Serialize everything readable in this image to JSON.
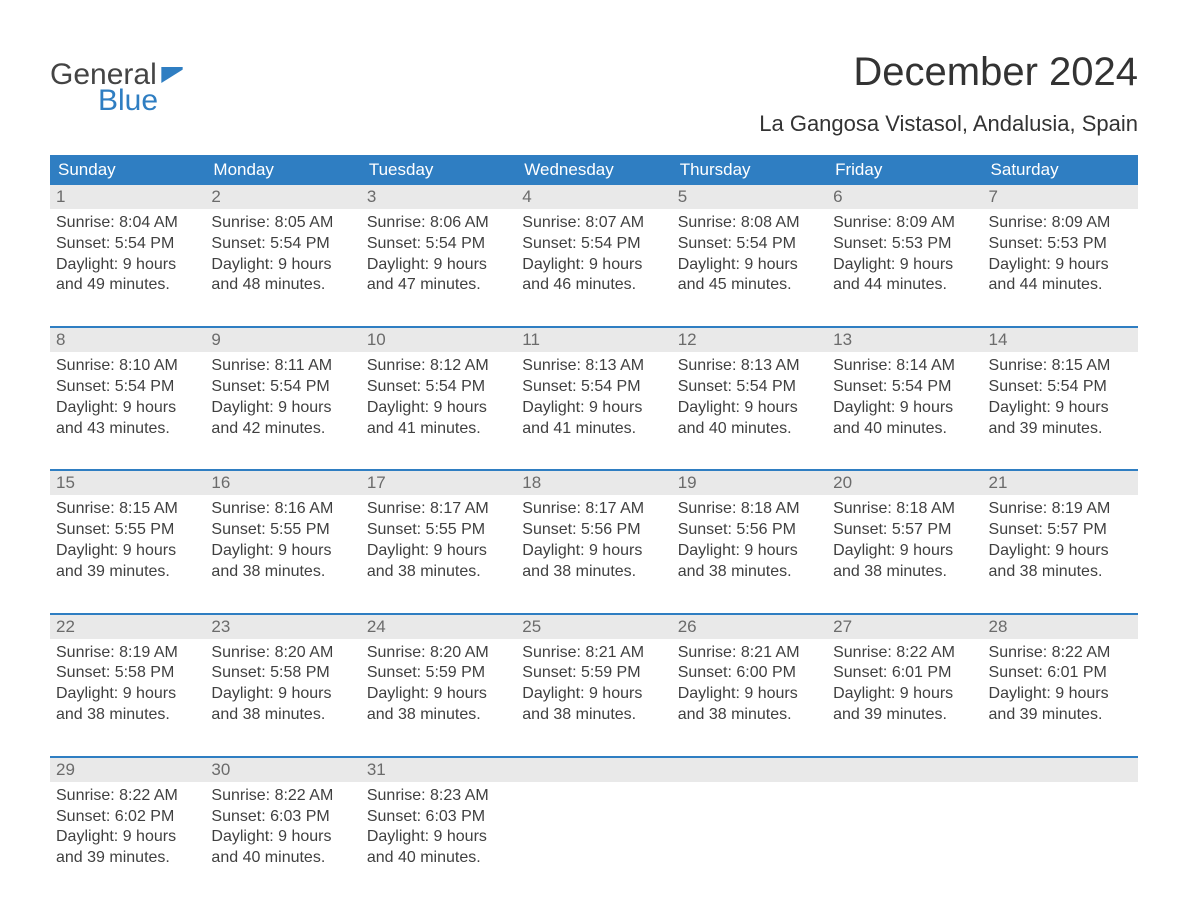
{
  "logo": {
    "text_top": "General",
    "text_bottom": "Blue",
    "flag_color": "#2f7ec2",
    "text_top_color": "#444444",
    "text_bottom_color": "#2f7ec2"
  },
  "title": "December 2024",
  "subtitle": "La Gangosa Vistasol, Andalusia, Spain",
  "colors": {
    "header_bg": "#2f7ec2",
    "header_text": "#ffffff",
    "week_border": "#2f7ec2",
    "daynum_bg": "#e9e9e9",
    "daynum_text": "#6b6b6b",
    "body_text": "#404040",
    "page_bg": "#ffffff"
  },
  "day_headers": [
    "Sunday",
    "Monday",
    "Tuesday",
    "Wednesday",
    "Thursday",
    "Friday",
    "Saturday"
  ],
  "weeks": [
    [
      {
        "n": "1",
        "sunrise": "8:04 AM",
        "sunset": "5:54 PM",
        "daylight": "9 hours and 49 minutes."
      },
      {
        "n": "2",
        "sunrise": "8:05 AM",
        "sunset": "5:54 PM",
        "daylight": "9 hours and 48 minutes."
      },
      {
        "n": "3",
        "sunrise": "8:06 AM",
        "sunset": "5:54 PM",
        "daylight": "9 hours and 47 minutes."
      },
      {
        "n": "4",
        "sunrise": "8:07 AM",
        "sunset": "5:54 PM",
        "daylight": "9 hours and 46 minutes."
      },
      {
        "n": "5",
        "sunrise": "8:08 AM",
        "sunset": "5:54 PM",
        "daylight": "9 hours and 45 minutes."
      },
      {
        "n": "6",
        "sunrise": "8:09 AM",
        "sunset": "5:53 PM",
        "daylight": "9 hours and 44 minutes."
      },
      {
        "n": "7",
        "sunrise": "8:09 AM",
        "sunset": "5:53 PM",
        "daylight": "9 hours and 44 minutes."
      }
    ],
    [
      {
        "n": "8",
        "sunrise": "8:10 AM",
        "sunset": "5:54 PM",
        "daylight": "9 hours and 43 minutes."
      },
      {
        "n": "9",
        "sunrise": "8:11 AM",
        "sunset": "5:54 PM",
        "daylight": "9 hours and 42 minutes."
      },
      {
        "n": "10",
        "sunrise": "8:12 AM",
        "sunset": "5:54 PM",
        "daylight": "9 hours and 41 minutes."
      },
      {
        "n": "11",
        "sunrise": "8:13 AM",
        "sunset": "5:54 PM",
        "daylight": "9 hours and 41 minutes."
      },
      {
        "n": "12",
        "sunrise": "8:13 AM",
        "sunset": "5:54 PM",
        "daylight": "9 hours and 40 minutes."
      },
      {
        "n": "13",
        "sunrise": "8:14 AM",
        "sunset": "5:54 PM",
        "daylight": "9 hours and 40 minutes."
      },
      {
        "n": "14",
        "sunrise": "8:15 AM",
        "sunset": "5:54 PM",
        "daylight": "9 hours and 39 minutes."
      }
    ],
    [
      {
        "n": "15",
        "sunrise": "8:15 AM",
        "sunset": "5:55 PM",
        "daylight": "9 hours and 39 minutes."
      },
      {
        "n": "16",
        "sunrise": "8:16 AM",
        "sunset": "5:55 PM",
        "daylight": "9 hours and 38 minutes."
      },
      {
        "n": "17",
        "sunrise": "8:17 AM",
        "sunset": "5:55 PM",
        "daylight": "9 hours and 38 minutes."
      },
      {
        "n": "18",
        "sunrise": "8:17 AM",
        "sunset": "5:56 PM",
        "daylight": "9 hours and 38 minutes."
      },
      {
        "n": "19",
        "sunrise": "8:18 AM",
        "sunset": "5:56 PM",
        "daylight": "9 hours and 38 minutes."
      },
      {
        "n": "20",
        "sunrise": "8:18 AM",
        "sunset": "5:57 PM",
        "daylight": "9 hours and 38 minutes."
      },
      {
        "n": "21",
        "sunrise": "8:19 AM",
        "sunset": "5:57 PM",
        "daylight": "9 hours and 38 minutes."
      }
    ],
    [
      {
        "n": "22",
        "sunrise": "8:19 AM",
        "sunset": "5:58 PM",
        "daylight": "9 hours and 38 minutes."
      },
      {
        "n": "23",
        "sunrise": "8:20 AM",
        "sunset": "5:58 PM",
        "daylight": "9 hours and 38 minutes."
      },
      {
        "n": "24",
        "sunrise": "8:20 AM",
        "sunset": "5:59 PM",
        "daylight": "9 hours and 38 minutes."
      },
      {
        "n": "25",
        "sunrise": "8:21 AM",
        "sunset": "5:59 PM",
        "daylight": "9 hours and 38 minutes."
      },
      {
        "n": "26",
        "sunrise": "8:21 AM",
        "sunset": "6:00 PM",
        "daylight": "9 hours and 38 minutes."
      },
      {
        "n": "27",
        "sunrise": "8:22 AM",
        "sunset": "6:01 PM",
        "daylight": "9 hours and 39 minutes."
      },
      {
        "n": "28",
        "sunrise": "8:22 AM",
        "sunset": "6:01 PM",
        "daylight": "9 hours and 39 minutes."
      }
    ],
    [
      {
        "n": "29",
        "sunrise": "8:22 AM",
        "sunset": "6:02 PM",
        "daylight": "9 hours and 39 minutes."
      },
      {
        "n": "30",
        "sunrise": "8:22 AM",
        "sunset": "6:03 PM",
        "daylight": "9 hours and 40 minutes."
      },
      {
        "n": "31",
        "sunrise": "8:23 AM",
        "sunset": "6:03 PM",
        "daylight": "9 hours and 40 minutes."
      },
      null,
      null,
      null,
      null
    ]
  ],
  "labels": {
    "sunrise": "Sunrise:",
    "sunset": "Sunset:",
    "daylight": "Daylight:"
  }
}
